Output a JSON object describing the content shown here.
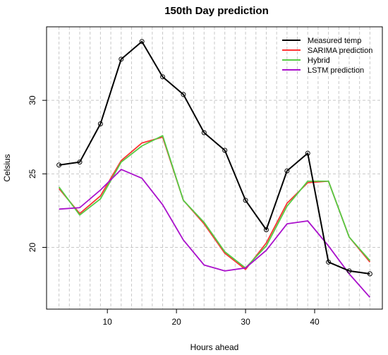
{
  "chart_data": {
    "type": "line",
    "title": "150th Day prediction",
    "xlabel": "Hours ahead",
    "ylabel": "Celsius",
    "xlim": [
      1.2,
      49.8
    ],
    "ylim": [
      15.8,
      35.0
    ],
    "xticks": [
      10,
      20,
      30,
      40
    ],
    "yticks": [
      20,
      25,
      30
    ],
    "grid": {
      "vertical_dashed_every": 1.5,
      "vertical_start": 3,
      "vertical_end": 48,
      "horizontal_at": [
        20,
        25,
        30
      ]
    },
    "legend_position": "top-right",
    "x": [
      3,
      6,
      9,
      12,
      15,
      18,
      21,
      24,
      27,
      30,
      33,
      36,
      39,
      42,
      45,
      48
    ],
    "series": [
      {
        "name": "Measured temp",
        "color": "#000000",
        "markers": true,
        "values": [
          25.6,
          25.8,
          28.4,
          32.8,
          34.0,
          31.6,
          30.4,
          27.8,
          26.6,
          23.2,
          21.2,
          25.2,
          26.4,
          19.0,
          18.4,
          18.2
        ]
      },
      {
        "name": "SARIMA prediction",
        "color": "#ff3333",
        "markers": false,
        "values": [
          24.0,
          22.3,
          23.5,
          25.9,
          27.1,
          27.5,
          23.2,
          21.6,
          19.6,
          18.5,
          20.3,
          23.0,
          24.4,
          24.5,
          20.7,
          19.0
        ]
      },
      {
        "name": "Hybrid",
        "color": "#55cc44",
        "markers": false,
        "values": [
          24.1,
          22.2,
          23.3,
          25.8,
          26.9,
          27.6,
          23.2,
          21.7,
          19.7,
          18.6,
          20.1,
          22.8,
          24.5,
          24.5,
          20.7,
          19.1
        ]
      },
      {
        "name": "LSTM prediction",
        "color": "#aa11cc",
        "markers": false,
        "values": [
          22.6,
          22.7,
          23.9,
          25.3,
          24.7,
          22.9,
          20.5,
          18.8,
          18.4,
          18.6,
          19.8,
          21.6,
          21.8,
          20.1,
          18.2,
          16.6
        ]
      }
    ]
  }
}
